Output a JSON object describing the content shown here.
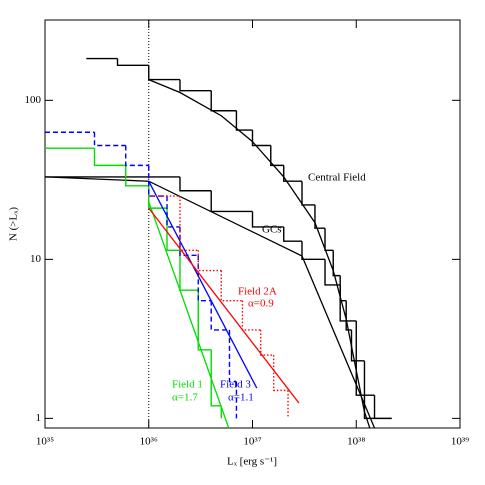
{
  "chart_data": {
    "type": "line",
    "x_label": "Lₓ [erg s⁻¹]",
    "y_label": "N (>Lₓ)",
    "xscale": "log",
    "yscale": "log",
    "xlim": [
      1e+35,
      1e+39
    ],
    "ylim": [
      0.87,
      320
    ],
    "xticks": [
      {
        "value": 1e+35,
        "label": "10³⁵"
      },
      {
        "value": 1e+36,
        "label": "10³⁶"
      },
      {
        "value": 1e+37,
        "label": "10³⁷"
      },
      {
        "value": 1e+38,
        "label": "10³⁸"
      },
      {
        "value": 1e+39,
        "label": "10³⁹"
      }
    ],
    "yticks": [
      1,
      10,
      100
    ],
    "reference_line_x": 1e+36,
    "series": [
      {
        "name": "Central Field",
        "style": "step",
        "color": "#000000",
        "dash": "none",
        "x": [
          2.5e+35,
          5e+35,
          1e+36,
          2e+36,
          4e+36,
          7e+36,
          1e+37,
          1.5e+37,
          2e+37,
          3e+37,
          4e+37,
          5e+37,
          6e+37,
          7e+37,
          8e+37,
          9e+37,
          1e+38,
          1.2e+38,
          2.2e+38
        ],
        "values": [
          183,
          166,
          135,
          115,
          86,
          65,
          52,
          39,
          31,
          22,
          15.7,
          11.4,
          7.9,
          5.5,
          3.6,
          2.3,
          1.4,
          1,
          1
        ]
      },
      {
        "style": "line",
        "color": "#000000",
        "dash": "none",
        "x": [
          1e+36,
          2e+36,
          5e+36,
          1e+37,
          2e+37,
          4e+37,
          6e+37,
          8e+37,
          1e+38,
          1.2e+38,
          1.35e+38
        ],
        "values": [
          135,
          112,
          80,
          55,
          33,
          17,
          8.5,
          4.2,
          2,
          1.1,
          0.87
        ]
      },
      {
        "name": "GCs",
        "style": "step",
        "color": "#000000",
        "dash": "none",
        "x": [
          1e+35,
          1e+36,
          2e+36,
          4e+36,
          1e+37,
          2e+37,
          3e+37,
          5e+37,
          7e+37,
          1e+38,
          1.2e+38,
          1.5e+38
        ],
        "values": [
          33,
          33,
          27,
          20,
          16,
          13,
          10,
          6.9,
          4.1,
          2.3,
          1.4,
          1
        ]
      },
      {
        "style": "line",
        "color": "#000000",
        "dash": "none",
        "x": [
          1e+35,
          1e+36,
          3e+37,
          1.5e+38
        ],
        "values": [
          33,
          31,
          10.5,
          0.87
        ]
      },
      {
        "name": "Field 1",
        "style": "step",
        "color": "#00dd00",
        "dash": "none",
        "x": [
          1e+35,
          3e+35,
          6e+35,
          1e+36,
          1.5e+36,
          2e+36,
          3e+36,
          4e+36,
          5e+36
        ],
        "values": [
          50,
          39,
          29,
          21,
          11.4,
          6.4,
          2.7,
          1.2,
          1
        ]
      },
      {
        "label": "α=1.7",
        "style": "line",
        "color": "#00dd00",
        "dash": "none",
        "x": [
          1e+36,
          5.9e+36
        ],
        "values": [
          23,
          0.87
        ]
      },
      {
        "name": "Field 3",
        "style": "step",
        "color": "#0000ff",
        "dash": "5,3",
        "x": [
          1e+35,
          3e+35,
          6e+35,
          1e+36,
          1.5e+36,
          2e+36,
          3e+36,
          4e+36,
          6e+36,
          7e+36
        ],
        "values": [
          63,
          52,
          39,
          25,
          16,
          10.6,
          5.5,
          3.6,
          1.7,
          1
        ]
      },
      {
        "label": "α=1.1",
        "style": "line",
        "color": "#0000ff",
        "dash": "none",
        "x": [
          1e+36,
          1.1e+37
        ],
        "values": [
          31,
          1.55
        ]
      },
      {
        "name": "Field 2A",
        "style": "step",
        "color": "#ff0000",
        "dash": "1.5,2",
        "x": [
          1e+36,
          2e+36,
          3e+36,
          5e+36,
          8e+36,
          1.2e+37,
          1.6e+37,
          2.2e+37
        ],
        "values": [
          25,
          11.4,
          8.5,
          5.5,
          3.6,
          2.5,
          1.5,
          1
        ]
      },
      {
        "label": "α=0.9",
        "style": "line",
        "color": "#ff0000",
        "dash": "none",
        "x": [
          1e+36,
          2.8e+37
        ],
        "values": [
          21,
          1.25
        ]
      }
    ]
  }
}
